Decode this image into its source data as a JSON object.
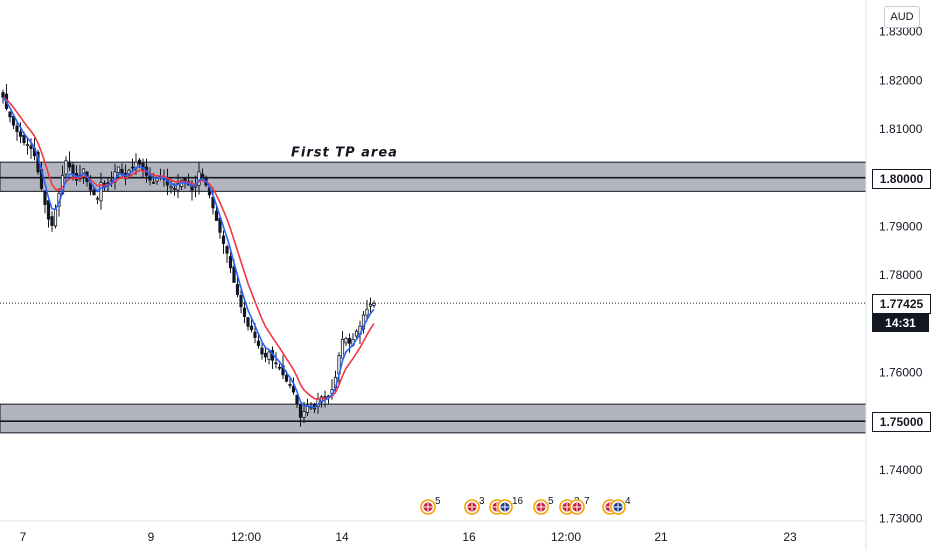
{
  "currency": "AUD",
  "chart_data": {
    "type": "candlestick",
    "ylim": [
      1.7295,
      1.8365
    ],
    "y_ticks": [
      "1.83000",
      "1.82000",
      "1.81000",
      "1.79000",
      "1.78000",
      "1.76000",
      "1.74000",
      "1.73000"
    ],
    "y_tick_values": [
      1.83,
      1.82,
      1.81,
      1.79,
      1.78,
      1.76,
      1.74,
      1.73
    ],
    "x_ticks": [
      "7",
      "9",
      "12:00",
      "14",
      "16",
      "12:00",
      "21",
      "23"
    ],
    "zones": [
      {
        "top": 1.8032,
        "bottom": 1.7972,
        "level": 1.8,
        "label": "1.80000"
      },
      {
        "top": 1.7535,
        "bottom": 1.7476,
        "level": 1.75,
        "label": "1.75000"
      }
    ],
    "annotation": {
      "text": "First TP area",
      "price": 1.8052
    },
    "current_price": {
      "value": 1.77425,
      "label": "1.77425",
      "countdown": "14:31"
    },
    "ma_fast_color": "#2962ff",
    "ma_slow_color": "#f23645",
    "candle_color": "#131722",
    "closes": [
      1.8165,
      1.8142,
      1.8125,
      1.8108,
      1.8095,
      1.8085,
      1.8072,
      1.8068,
      1.806,
      1.8045,
      1.8012,
      1.7978,
      1.7945,
      1.7915,
      1.7902,
      1.7935,
      1.7968,
      1.8005,
      1.8035,
      1.8022,
      1.8008,
      1.7995,
      1.8005,
      1.8018,
      1.7992,
      1.7975,
      1.7965,
      1.7958,
      1.799,
      1.7982,
      1.799,
      1.7995,
      1.8012,
      1.8022,
      1.8008,
      1.7998,
      1.8015,
      1.802,
      1.8032,
      1.8028,
      1.8015,
      1.8005,
      1.7995,
      1.799,
      1.7998,
      1.8002,
      1.7998,
      1.7985,
      1.7982,
      1.7978,
      1.7988,
      1.7995,
      1.7992,
      1.7985,
      1.7975,
      1.7985,
      1.8012,
      1.8002,
      1.7985,
      1.7965,
      1.7938,
      1.7912,
      1.7888,
      1.7865,
      1.7845,
      1.7815,
      1.7785,
      1.776,
      1.7735,
      1.7715,
      1.7695,
      1.7688,
      1.7672,
      1.7655,
      1.7638,
      1.7632,
      1.7642,
      1.7625,
      1.7618,
      1.761,
      1.7595,
      1.7582,
      1.7575,
      1.756,
      1.7535,
      1.7508,
      1.752,
      1.753,
      1.7528,
      1.7525,
      1.7545,
      1.755,
      1.7548,
      1.7552,
      1.7565,
      1.759,
      1.7635,
      1.7668,
      1.767,
      1.766,
      1.7668,
      1.7685,
      1.7695,
      1.7718,
      1.773,
      1.774,
      1.7742
    ],
    "events": [
      {
        "label": "5",
        "flags": 1
      },
      {
        "label": "3",
        "flags": 1
      },
      {
        "label": "16",
        "flags": 2
      },
      {
        "label": "5",
        "flags": 1
      },
      {
        "label": "2",
        "flags": 1
      },
      {
        "label": "7",
        "flags": 1
      },
      {
        "label": "4",
        "flags": 2
      }
    ]
  }
}
